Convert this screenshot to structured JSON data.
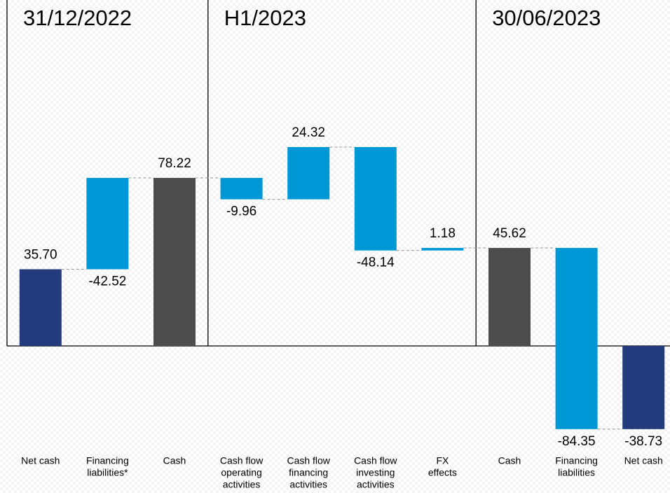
{
  "chart_data": {
    "type": "waterfall",
    "sections": [
      "31/12/2022",
      "H1/2023",
      "30/06/2023"
    ],
    "categories": [
      [
        "Net cash"
      ],
      [
        "Financing",
        "liabilities*"
      ],
      [
        "Cash"
      ],
      [
        "Cash flow",
        "operating",
        "activities"
      ],
      [
        "Cash flow",
        "financing",
        "activities"
      ],
      [
        "Cash flow",
        "investing",
        "activities"
      ],
      [
        "FX",
        "effects"
      ],
      [
        "Cash"
      ],
      [
        "Financing",
        "liabilities"
      ],
      [
        "Net cash"
      ]
    ],
    "values": [
      35.7,
      -42.52,
      78.22,
      -9.96,
      24.32,
      -48.14,
      1.18,
      45.62,
      -84.35,
      -38.73
    ],
    "value_labels": [
      "35.70",
      "-42.52",
      "78.22",
      "-9.96",
      "24.32",
      "-48.14",
      "1.18",
      "45.62",
      "-84.35",
      "-38.73"
    ],
    "measure": [
      "absolute",
      "relative",
      "absolute",
      "relative",
      "relative",
      "relative",
      "relative",
      "absolute",
      "relative",
      "absolute"
    ],
    "colors": [
      "#233a7d",
      "#0097d7",
      "#4d4d4d",
      "#0097d7",
      "#0097d7",
      "#0097d7",
      "#0097d7",
      "#4d4d4d",
      "#0097d7",
      "#233a7d"
    ]
  }
}
